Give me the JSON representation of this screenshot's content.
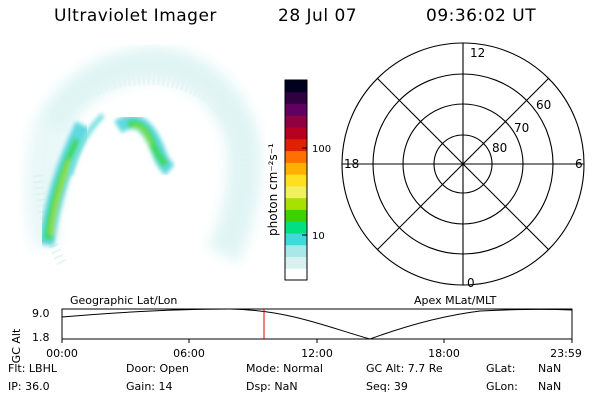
{
  "header": {
    "instrument": "Ultraviolet Imager",
    "date": "28 Jul 07",
    "time": "09:36:02 UT"
  },
  "colorbar": {
    "unit_label": "photon cm⁻²s⁻¹",
    "ticks": [
      "100",
      "10"
    ],
    "colors": [
      "#ffffff",
      "#d8f0f0",
      "#a8e8e8",
      "#40d8d8",
      "#00e080",
      "#40d000",
      "#a8e000",
      "#f0f060",
      "#ffe020",
      "#ffb000",
      "#ff7000",
      "#e02000",
      "#b80020",
      "#900040",
      "#600060",
      "#300040",
      "#000020"
    ]
  },
  "polar_plot": {
    "clock_labels": {
      "top": "12",
      "left": "18",
      "right": "6",
      "bottom": "0"
    },
    "lat_labels": [
      "60",
      "70",
      "80"
    ]
  },
  "orbit_plot": {
    "left_title": "Geographic Lat/Lon",
    "right_title": "Apex  MLat/MLT",
    "ylabel": "GC Alt",
    "y_ticks": [
      "9.0",
      "1.8"
    ],
    "x_ticks": [
      "00:00",
      "06:00",
      "12:00",
      "18:00",
      "23:59"
    ],
    "current_time_marker": "09:36",
    "marker_color": "#e00000"
  },
  "info": {
    "flt": "Flt: LBHL",
    "ip": "IP: 36.0",
    "door": "Door: Open",
    "gain": "Gain: 14",
    "mode": "Mode: Normal",
    "dsp": "Dsp:    NaN",
    "gcalt": "GC Alt: 7.7 Re",
    "seq": "Seq: 39",
    "glat_label": "GLat:",
    "glat_value": "NaN",
    "glon_label": "GLon:",
    "glon_value": "NaN"
  }
}
